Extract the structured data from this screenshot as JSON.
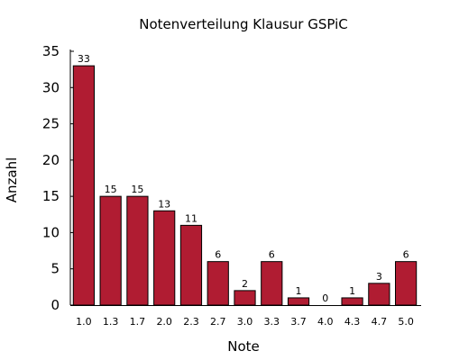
{
  "chart_data": {
    "type": "bar",
    "title": "Notenverteilung Klausur GSPiC",
    "xlabel": "Note",
    "ylabel": "Anzahl",
    "categories": [
      "1.0",
      "1.3",
      "1.7",
      "2.0",
      "2.3",
      "2.7",
      "3.0",
      "3.3",
      "3.7",
      "4.0",
      "4.3",
      "4.7",
      "5.0"
    ],
    "values": [
      33,
      15,
      15,
      13,
      11,
      6,
      2,
      6,
      1,
      0,
      1,
      3,
      6
    ],
    "ylim": [
      0,
      35
    ],
    "yticks": [
      0,
      5,
      10,
      15,
      20,
      25,
      30,
      35
    ],
    "grid": false,
    "legend": "none",
    "bar_color": "#b01c32",
    "bar_edge_color": "#000000"
  }
}
